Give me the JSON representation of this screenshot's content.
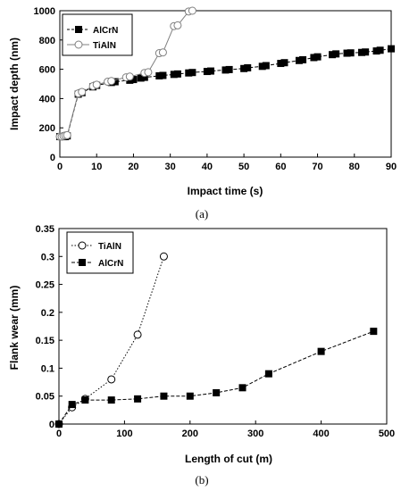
{
  "chart_data": [
    {
      "type": "line",
      "caption": "(a)",
      "xlabel": "Impact time (s)",
      "ylabel": "Impact depth (nm)",
      "xlim": [
        0,
        90
      ],
      "ylim": [
        0,
        1000
      ],
      "xticks": [
        0,
        10,
        20,
        30,
        40,
        50,
        60,
        70,
        80,
        90
      ],
      "yticks": [
        0,
        200,
        400,
        600,
        800,
        1000
      ],
      "grid": false,
      "legend_position": "top-left",
      "series": [
        {
          "name": "AlCrN",
          "marker": "square-filled",
          "line_style": "dashed",
          "color": "#000000",
          "x": [
            0,
            0.5,
            1,
            1.5,
            2,
            5,
            6,
            9,
            10,
            14,
            15,
            19,
            20,
            22,
            23,
            27,
            28,
            31,
            32,
            35,
            36,
            40,
            41,
            45,
            46,
            50,
            51,
            55,
            56,
            60,
            61,
            65,
            66,
            69,
            70,
            74,
            75,
            78,
            79,
            82,
            83,
            86,
            87,
            90
          ],
          "y": [
            140,
            140,
            140,
            140,
            145,
            430,
            440,
            480,
            490,
            510,
            515,
            525,
            530,
            540,
            545,
            555,
            558,
            565,
            568,
            575,
            578,
            585,
            588,
            595,
            598,
            605,
            610,
            620,
            625,
            640,
            645,
            660,
            665,
            680,
            685,
            700,
            705,
            710,
            712,
            715,
            718,
            725,
            730,
            740
          ]
        },
        {
          "name": "TiAlN",
          "marker": "circle-open",
          "line_style": "solid",
          "color": "#7f7f7f",
          "x": [
            0,
            0.5,
            1,
            1.5,
            2,
            5,
            6,
            9,
            10,
            13,
            14,
            18,
            19,
            23,
            24,
            27,
            28,
            31,
            32,
            35,
            36
          ],
          "y": [
            140,
            140,
            145,
            148,
            150,
            435,
            445,
            485,
            495,
            515,
            520,
            545,
            550,
            575,
            580,
            710,
            715,
            895,
            900,
            995,
            1000
          ]
        }
      ]
    },
    {
      "type": "line",
      "caption": "(b)",
      "xlabel": "Length of cut (m)",
      "ylabel": "Flank wear (mm)",
      "xlim": [
        0,
        500
      ],
      "ylim": [
        0,
        0.35
      ],
      "xticks": [
        0,
        100,
        200,
        300,
        400,
        500
      ],
      "yticks": [
        0,
        0.05,
        0.1,
        0.15,
        0.2,
        0.25,
        0.3,
        0.35
      ],
      "grid": false,
      "legend_position": "top-left",
      "series": [
        {
          "name": "TiAlN",
          "marker": "circle-open",
          "line_style": "dotted",
          "color": "#000000",
          "x": [
            0,
            20,
            40,
            80,
            120,
            160
          ],
          "y": [
            0,
            0.03,
            0.045,
            0.08,
            0.16,
            0.3
          ]
        },
        {
          "name": "AlCrN",
          "marker": "square-filled",
          "line_style": "dashed",
          "color": "#000000",
          "x": [
            0,
            20,
            40,
            80,
            120,
            160,
            200,
            240,
            280,
            320,
            400,
            480
          ],
          "y": [
            0,
            0.035,
            0.043,
            0.043,
            0.045,
            0.05,
            0.05,
            0.056,
            0.065,
            0.09,
            0.13,
            0.166
          ]
        }
      ]
    }
  ]
}
